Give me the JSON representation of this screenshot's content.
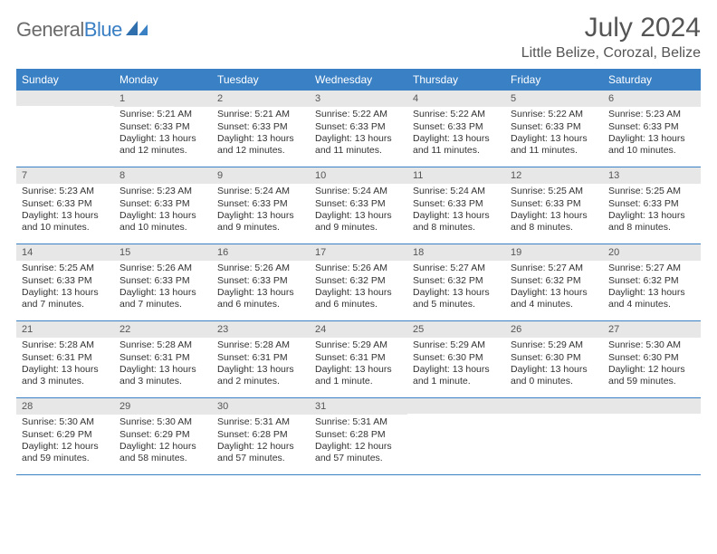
{
  "brand": {
    "word1": "General",
    "word2": "Blue"
  },
  "title": "July 2024",
  "location": "Little Belize, Corozal, Belize",
  "colors": {
    "header_bg": "#3a80c5",
    "daynum_bg": "#e7e7e7",
    "text": "#333333",
    "title": "#555555"
  },
  "weekdays": [
    "Sunday",
    "Monday",
    "Tuesday",
    "Wednesday",
    "Thursday",
    "Friday",
    "Saturday"
  ],
  "weeks": [
    [
      {
        "n": "",
        "l1": "",
        "l2": "",
        "l3": "",
        "l4": ""
      },
      {
        "n": "1",
        "l1": "Sunrise: 5:21 AM",
        "l2": "Sunset: 6:33 PM",
        "l3": "Daylight: 13 hours",
        "l4": "and 12 minutes."
      },
      {
        "n": "2",
        "l1": "Sunrise: 5:21 AM",
        "l2": "Sunset: 6:33 PM",
        "l3": "Daylight: 13 hours",
        "l4": "and 12 minutes."
      },
      {
        "n": "3",
        "l1": "Sunrise: 5:22 AM",
        "l2": "Sunset: 6:33 PM",
        "l3": "Daylight: 13 hours",
        "l4": "and 11 minutes."
      },
      {
        "n": "4",
        "l1": "Sunrise: 5:22 AM",
        "l2": "Sunset: 6:33 PM",
        "l3": "Daylight: 13 hours",
        "l4": "and 11 minutes."
      },
      {
        "n": "5",
        "l1": "Sunrise: 5:22 AM",
        "l2": "Sunset: 6:33 PM",
        "l3": "Daylight: 13 hours",
        "l4": "and 11 minutes."
      },
      {
        "n": "6",
        "l1": "Sunrise: 5:23 AM",
        "l2": "Sunset: 6:33 PM",
        "l3": "Daylight: 13 hours",
        "l4": "and 10 minutes."
      }
    ],
    [
      {
        "n": "7",
        "l1": "Sunrise: 5:23 AM",
        "l2": "Sunset: 6:33 PM",
        "l3": "Daylight: 13 hours",
        "l4": "and 10 minutes."
      },
      {
        "n": "8",
        "l1": "Sunrise: 5:23 AM",
        "l2": "Sunset: 6:33 PM",
        "l3": "Daylight: 13 hours",
        "l4": "and 10 minutes."
      },
      {
        "n": "9",
        "l1": "Sunrise: 5:24 AM",
        "l2": "Sunset: 6:33 PM",
        "l3": "Daylight: 13 hours",
        "l4": "and 9 minutes."
      },
      {
        "n": "10",
        "l1": "Sunrise: 5:24 AM",
        "l2": "Sunset: 6:33 PM",
        "l3": "Daylight: 13 hours",
        "l4": "and 9 minutes."
      },
      {
        "n": "11",
        "l1": "Sunrise: 5:24 AM",
        "l2": "Sunset: 6:33 PM",
        "l3": "Daylight: 13 hours",
        "l4": "and 8 minutes."
      },
      {
        "n": "12",
        "l1": "Sunrise: 5:25 AM",
        "l2": "Sunset: 6:33 PM",
        "l3": "Daylight: 13 hours",
        "l4": "and 8 minutes."
      },
      {
        "n": "13",
        "l1": "Sunrise: 5:25 AM",
        "l2": "Sunset: 6:33 PM",
        "l3": "Daylight: 13 hours",
        "l4": "and 8 minutes."
      }
    ],
    [
      {
        "n": "14",
        "l1": "Sunrise: 5:25 AM",
        "l2": "Sunset: 6:33 PM",
        "l3": "Daylight: 13 hours",
        "l4": "and 7 minutes."
      },
      {
        "n": "15",
        "l1": "Sunrise: 5:26 AM",
        "l2": "Sunset: 6:33 PM",
        "l3": "Daylight: 13 hours",
        "l4": "and 7 minutes."
      },
      {
        "n": "16",
        "l1": "Sunrise: 5:26 AM",
        "l2": "Sunset: 6:33 PM",
        "l3": "Daylight: 13 hours",
        "l4": "and 6 minutes."
      },
      {
        "n": "17",
        "l1": "Sunrise: 5:26 AM",
        "l2": "Sunset: 6:32 PM",
        "l3": "Daylight: 13 hours",
        "l4": "and 6 minutes."
      },
      {
        "n": "18",
        "l1": "Sunrise: 5:27 AM",
        "l2": "Sunset: 6:32 PM",
        "l3": "Daylight: 13 hours",
        "l4": "and 5 minutes."
      },
      {
        "n": "19",
        "l1": "Sunrise: 5:27 AM",
        "l2": "Sunset: 6:32 PM",
        "l3": "Daylight: 13 hours",
        "l4": "and 4 minutes."
      },
      {
        "n": "20",
        "l1": "Sunrise: 5:27 AM",
        "l2": "Sunset: 6:32 PM",
        "l3": "Daylight: 13 hours",
        "l4": "and 4 minutes."
      }
    ],
    [
      {
        "n": "21",
        "l1": "Sunrise: 5:28 AM",
        "l2": "Sunset: 6:31 PM",
        "l3": "Daylight: 13 hours",
        "l4": "and 3 minutes."
      },
      {
        "n": "22",
        "l1": "Sunrise: 5:28 AM",
        "l2": "Sunset: 6:31 PM",
        "l3": "Daylight: 13 hours",
        "l4": "and 3 minutes."
      },
      {
        "n": "23",
        "l1": "Sunrise: 5:28 AM",
        "l2": "Sunset: 6:31 PM",
        "l3": "Daylight: 13 hours",
        "l4": "and 2 minutes."
      },
      {
        "n": "24",
        "l1": "Sunrise: 5:29 AM",
        "l2": "Sunset: 6:31 PM",
        "l3": "Daylight: 13 hours",
        "l4": "and 1 minute."
      },
      {
        "n": "25",
        "l1": "Sunrise: 5:29 AM",
        "l2": "Sunset: 6:30 PM",
        "l3": "Daylight: 13 hours",
        "l4": "and 1 minute."
      },
      {
        "n": "26",
        "l1": "Sunrise: 5:29 AM",
        "l2": "Sunset: 6:30 PM",
        "l3": "Daylight: 13 hours",
        "l4": "and 0 minutes."
      },
      {
        "n": "27",
        "l1": "Sunrise: 5:30 AM",
        "l2": "Sunset: 6:30 PM",
        "l3": "Daylight: 12 hours",
        "l4": "and 59 minutes."
      }
    ],
    [
      {
        "n": "28",
        "l1": "Sunrise: 5:30 AM",
        "l2": "Sunset: 6:29 PM",
        "l3": "Daylight: 12 hours",
        "l4": "and 59 minutes."
      },
      {
        "n": "29",
        "l1": "Sunrise: 5:30 AM",
        "l2": "Sunset: 6:29 PM",
        "l3": "Daylight: 12 hours",
        "l4": "and 58 minutes."
      },
      {
        "n": "30",
        "l1": "Sunrise: 5:31 AM",
        "l2": "Sunset: 6:28 PM",
        "l3": "Daylight: 12 hours",
        "l4": "and 57 minutes."
      },
      {
        "n": "31",
        "l1": "Sunrise: 5:31 AM",
        "l2": "Sunset: 6:28 PM",
        "l3": "Daylight: 12 hours",
        "l4": "and 57 minutes."
      },
      {
        "n": "",
        "l1": "",
        "l2": "",
        "l3": "",
        "l4": ""
      },
      {
        "n": "",
        "l1": "",
        "l2": "",
        "l3": "",
        "l4": ""
      },
      {
        "n": "",
        "l1": "",
        "l2": "",
        "l3": "",
        "l4": ""
      }
    ]
  ]
}
